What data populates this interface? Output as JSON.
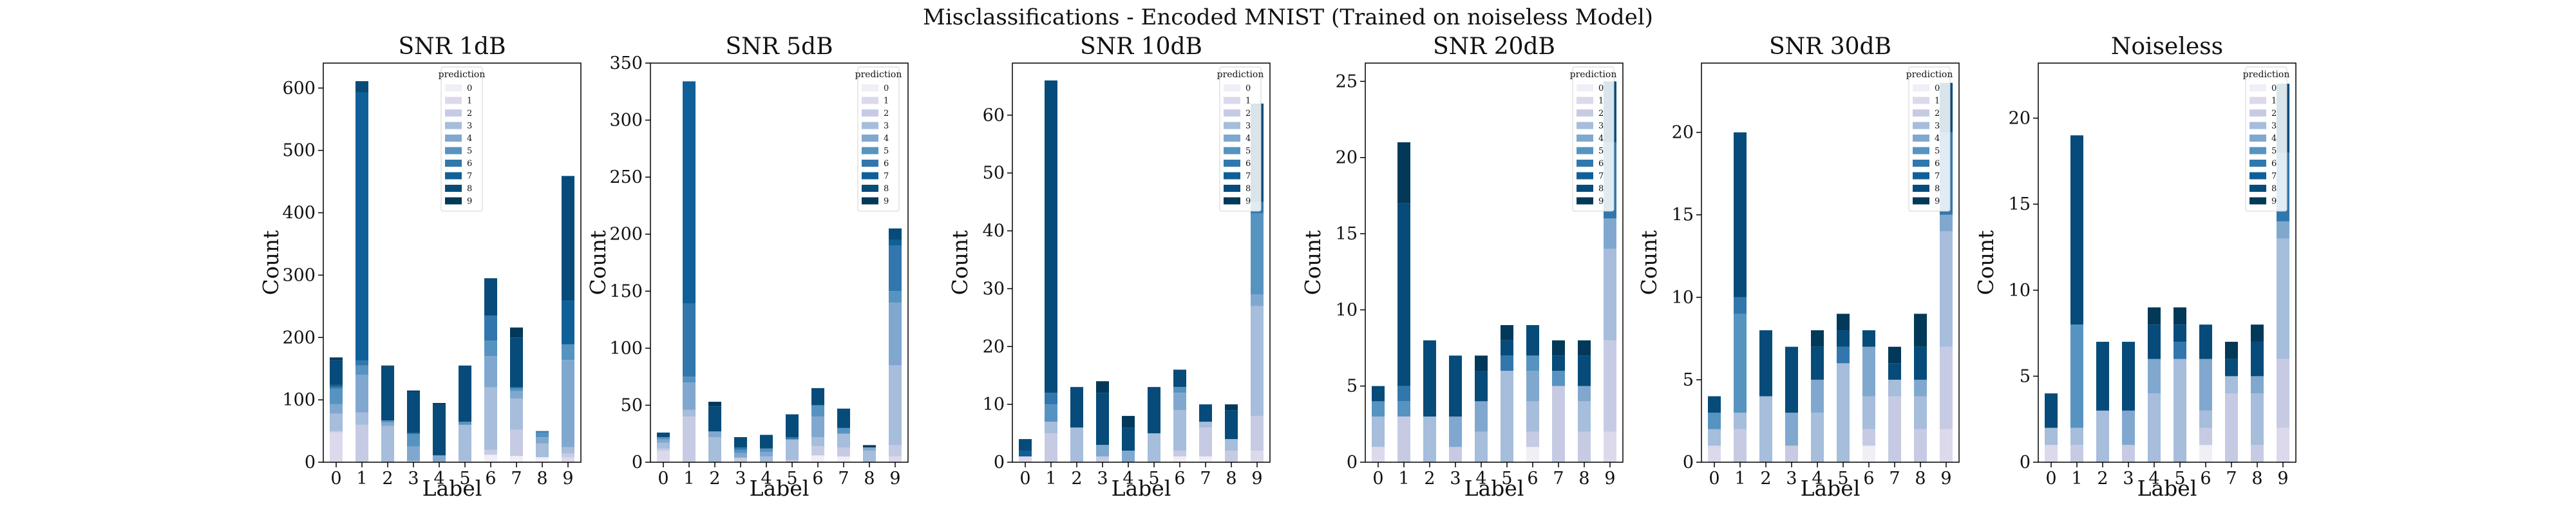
{
  "figure_title": "Misclassifications - Encoded MNIST (Trained on noiseless Model)",
  "legend_title": "prediction",
  "colors": [
    "#f1eef6",
    "#dcd9ed",
    "#c6cbe3",
    "#a6bddb",
    "#80a8cf",
    "#5793c0",
    "#3177ad",
    "#0f6098",
    "#064b79",
    "#023858"
  ],
  "chart_data": [
    {
      "type": "bar",
      "stacked": true,
      "title": "SNR 1dB",
      "xlabel": "Label",
      "ylabel": "Count",
      "ylim": [
        0,
        640
      ],
      "yticks": [
        0,
        100,
        200,
        300,
        400,
        500,
        600
      ],
      "categories": [
        "0",
        "1",
        "2",
        "3",
        "4",
        "5",
        "6",
        "7",
        "8",
        "9"
      ],
      "legend_position": "upper-center",
      "series": [
        {
          "name": "0",
          "values": [
            0,
            0,
            0,
            0,
            0,
            0,
            12,
            10,
            8,
            0
          ]
        },
        {
          "name": "1",
          "values": [
            48,
            0,
            0,
            0,
            0,
            0,
            0,
            0,
            0,
            8
          ]
        },
        {
          "name": "2",
          "values": [
            2,
            60,
            0,
            2,
            0,
            2,
            8,
            42,
            0,
            6
          ]
        },
        {
          "name": "3",
          "values": [
            28,
            20,
            58,
            0,
            0,
            58,
            100,
            50,
            22,
            10
          ]
        },
        {
          "name": "4",
          "values": [
            15,
            60,
            6,
            23,
            11,
            0,
            50,
            12,
            10,
            140
          ]
        },
        {
          "name": "5",
          "values": [
            25,
            15,
            3,
            20,
            0,
            5,
            25,
            4,
            8,
            25
          ]
        },
        {
          "name": "6",
          "values": [
            3,
            8,
            0,
            2,
            0,
            0,
            40,
            2,
            2,
            0
          ]
        },
        {
          "name": "7",
          "values": [
            3,
            430,
            0,
            0,
            0,
            0,
            0,
            0,
            0,
            70
          ]
        },
        {
          "name": "8",
          "values": [
            40,
            18,
            86,
            66,
            81,
            90,
            60,
            80,
            0,
            200
          ]
        },
        {
          "name": "9",
          "values": [
            4,
            0,
            2,
            2,
            3,
            0,
            0,
            16,
            0,
            0
          ]
        }
      ]
    },
    {
      "type": "bar",
      "stacked": true,
      "title": "SNR 5dB",
      "xlabel": "Label",
      "ylabel": "Count",
      "ylim": [
        0,
        350
      ],
      "yticks": [
        0,
        50,
        100,
        150,
        200,
        250,
        300,
        350
      ],
      "categories": [
        "0",
        "1",
        "2",
        "3",
        "4",
        "5",
        "6",
        "7",
        "8",
        "9"
      ],
      "legend_position": "top-right",
      "series": [
        {
          "name": "0",
          "values": [
            0,
            0,
            0,
            0,
            0,
            0,
            6,
            5,
            0,
            0
          ]
        },
        {
          "name": "1",
          "values": [
            10,
            0,
            0,
            0,
            0,
            0,
            0,
            0,
            0,
            5
          ]
        },
        {
          "name": "2",
          "values": [
            2,
            40,
            0,
            4,
            0,
            2,
            8,
            8,
            0,
            10
          ]
        },
        {
          "name": "3",
          "values": [
            5,
            6,
            22,
            0,
            5,
            18,
            8,
            12,
            10,
            70
          ]
        },
        {
          "name": "4",
          "values": [
            3,
            24,
            5,
            4,
            4,
            0,
            18,
            0,
            3,
            55
          ]
        },
        {
          "name": "5",
          "values": [
            2,
            5,
            0,
            3,
            3,
            0,
            10,
            5,
            0,
            10
          ]
        },
        {
          "name": "6",
          "values": [
            0,
            64,
            0,
            2,
            0,
            2,
            0,
            0,
            0,
            40
          ]
        },
        {
          "name": "7",
          "values": [
            0,
            195,
            0,
            0,
            0,
            0,
            0,
            0,
            0,
            5
          ]
        },
        {
          "name": "8",
          "values": [
            4,
            0,
            22,
            9,
            12,
            20,
            15,
            17,
            0,
            10
          ]
        },
        {
          "name": "9",
          "values": [
            0,
            0,
            4,
            0,
            0,
            0,
            0,
            0,
            2,
            0
          ]
        }
      ]
    },
    {
      "type": "bar",
      "stacked": true,
      "title": "SNR 10dB",
      "xlabel": "Label",
      "ylabel": "Count",
      "ylim": [
        0,
        69
      ],
      "yticks": [
        0,
        10,
        20,
        30,
        40,
        50,
        60
      ],
      "categories": [
        "0",
        "1",
        "2",
        "3",
        "4",
        "5",
        "6",
        "7",
        "8",
        "9"
      ],
      "legend_position": "top-right",
      "series": [
        {
          "name": "0",
          "values": [
            0,
            0,
            0,
            0,
            0,
            0,
            1,
            1,
            0,
            0
          ]
        },
        {
          "name": "1",
          "values": [
            1,
            0,
            0,
            0,
            0,
            0,
            0,
            0,
            0,
            2
          ]
        },
        {
          "name": "2",
          "values": [
            0,
            5,
            0,
            1,
            0,
            0,
            1,
            5,
            2,
            6
          ]
        },
        {
          "name": "3",
          "values": [
            0,
            2,
            6,
            0,
            0,
            5,
            7,
            1,
            2,
            19
          ]
        },
        {
          "name": "4",
          "values": [
            0,
            0,
            0,
            2,
            2,
            0,
            3,
            0,
            0,
            2
          ]
        },
        {
          "name": "5",
          "values": [
            0,
            3,
            0,
            0,
            0,
            0,
            1,
            0,
            0,
            14
          ]
        },
        {
          "name": "6",
          "values": [
            0,
            2,
            0,
            0,
            0,
            0,
            0,
            0,
            0,
            2
          ]
        },
        {
          "name": "7",
          "values": [
            1,
            0,
            0,
            0,
            0,
            0,
            0,
            0,
            0,
            0
          ]
        },
        {
          "name": "8",
          "values": [
            2,
            54,
            7,
            9,
            4,
            8,
            3,
            3,
            5,
            17
          ]
        },
        {
          "name": "9",
          "values": [
            0,
            0,
            0,
            2,
            2,
            0,
            0,
            0,
            1,
            0
          ]
        }
      ]
    },
    {
      "type": "bar",
      "stacked": true,
      "title": "SNR 20dB",
      "xlabel": "Label",
      "ylabel": "Count",
      "ylim": [
        0,
        26.2
      ],
      "yticks": [
        0,
        5,
        10,
        15,
        20,
        25
      ],
      "categories": [
        "0",
        "1",
        "2",
        "3",
        "4",
        "5",
        "6",
        "7",
        "8",
        "9"
      ],
      "legend_position": "top-right",
      "series": [
        {
          "name": "0",
          "values": [
            0,
            0,
            0,
            0,
            0,
            0,
            1,
            0,
            0,
            0
          ]
        },
        {
          "name": "1",
          "values": [
            1,
            0,
            0,
            0,
            0,
            0,
            0,
            0,
            0,
            2
          ]
        },
        {
          "name": "2",
          "values": [
            0,
            3,
            0,
            1,
            0,
            0,
            1,
            5,
            2,
            6
          ]
        },
        {
          "name": "3",
          "values": [
            2,
            0,
            3,
            0,
            2,
            6,
            2,
            0,
            2,
            6
          ]
        },
        {
          "name": "4",
          "values": [
            0,
            0,
            0,
            2,
            2,
            0,
            2,
            0,
            1,
            2
          ]
        },
        {
          "name": "5",
          "values": [
            1,
            1,
            0,
            0,
            0,
            0,
            1,
            1,
            0,
            0
          ]
        },
        {
          "name": "6",
          "values": [
            0,
            1,
            0,
            0,
            0,
            1,
            0,
            0,
            0,
            5
          ]
        },
        {
          "name": "7",
          "values": [
            0,
            0,
            0,
            0,
            0,
            0,
            0,
            0,
            0,
            0
          ]
        },
        {
          "name": "8",
          "values": [
            1,
            12,
            5,
            4,
            2,
            1,
            2,
            1,
            2,
            4
          ]
        },
        {
          "name": "9",
          "values": [
            0,
            4,
            0,
            0,
            1,
            1,
            0,
            1,
            1,
            0
          ]
        }
      ]
    },
    {
      "type": "bar",
      "stacked": true,
      "title": "SNR 30dB",
      "xlabel": "Label",
      "ylabel": "Count",
      "ylim": [
        0,
        24.2
      ],
      "yticks": [
        0,
        5,
        10,
        15,
        20
      ],
      "categories": [
        "0",
        "1",
        "2",
        "3",
        "4",
        "5",
        "6",
        "7",
        "8",
        "9"
      ],
      "legend_position": "top-right",
      "series": [
        {
          "name": "0",
          "values": [
            0,
            0,
            0,
            0,
            0,
            0,
            1,
            0,
            0,
            0
          ]
        },
        {
          "name": "1",
          "values": [
            1,
            0,
            0,
            0,
            0,
            0,
            0,
            0,
            0,
            2
          ]
        },
        {
          "name": "2",
          "values": [
            0,
            2,
            0,
            1,
            0,
            0,
            1,
            4,
            2,
            5
          ]
        },
        {
          "name": "3",
          "values": [
            1,
            1,
            4,
            0,
            3,
            6,
            2,
            1,
            2,
            7
          ]
        },
        {
          "name": "4",
          "values": [
            0,
            0,
            0,
            2,
            2,
            0,
            3,
            0,
            1,
            1
          ]
        },
        {
          "name": "5",
          "values": [
            1,
            6,
            0,
            0,
            0,
            0,
            0,
            0,
            0,
            0
          ]
        },
        {
          "name": "6",
          "values": [
            0,
            1,
            0,
            0,
            0,
            1,
            0,
            0,
            0,
            5
          ]
        },
        {
          "name": "7",
          "values": [
            0,
            0,
            0,
            0,
            0,
            0,
            0,
            0,
            0,
            0
          ]
        },
        {
          "name": "8",
          "values": [
            1,
            10,
            4,
            4,
            2,
            1,
            1,
            1,
            2,
            3
          ]
        },
        {
          "name": "9",
          "values": [
            0,
            0,
            0,
            0,
            1,
            1,
            0,
            1,
            2,
            0
          ]
        }
      ]
    },
    {
      "type": "bar",
      "stacked": true,
      "title": "Noiseless",
      "xlabel": "Label",
      "ylabel": "Count",
      "ylim": [
        0,
        23.2
      ],
      "yticks": [
        0,
        5,
        10,
        15,
        20
      ],
      "categories": [
        "0",
        "1",
        "2",
        "3",
        "4",
        "5",
        "6",
        "7",
        "8",
        "9"
      ],
      "legend_position": "top-right",
      "series": [
        {
          "name": "0",
          "values": [
            0,
            0,
            0,
            0,
            0,
            0,
            1,
            0,
            0,
            0
          ]
        },
        {
          "name": "1",
          "values": [
            1,
            0,
            0,
            0,
            0,
            0,
            0,
            0,
            0,
            2
          ]
        },
        {
          "name": "2",
          "values": [
            0,
            1,
            0,
            1,
            0,
            0,
            1,
            4,
            1,
            4
          ]
        },
        {
          "name": "3",
          "values": [
            1,
            1,
            3,
            0,
            4,
            6,
            1,
            1,
            3,
            7
          ]
        },
        {
          "name": "4",
          "values": [
            0,
            0,
            0,
            2,
            2,
            0,
            3,
            0,
            1,
            1
          ]
        },
        {
          "name": "5",
          "values": [
            0,
            6,
            0,
            0,
            0,
            0,
            0,
            0,
            0,
            0
          ]
        },
        {
          "name": "6",
          "values": [
            0,
            0,
            0,
            0,
            0,
            1,
            0,
            0,
            0,
            4
          ]
        },
        {
          "name": "7",
          "values": [
            0,
            0,
            0,
            0,
            0,
            0,
            0,
            0,
            0,
            0
          ]
        },
        {
          "name": "8",
          "values": [
            2,
            11,
            4,
            4,
            2,
            1,
            2,
            1,
            2,
            4
          ]
        },
        {
          "name": "9",
          "values": [
            0,
            0,
            0,
            0,
            1,
            1,
            0,
            1,
            1,
            0
          ]
        }
      ]
    }
  ]
}
